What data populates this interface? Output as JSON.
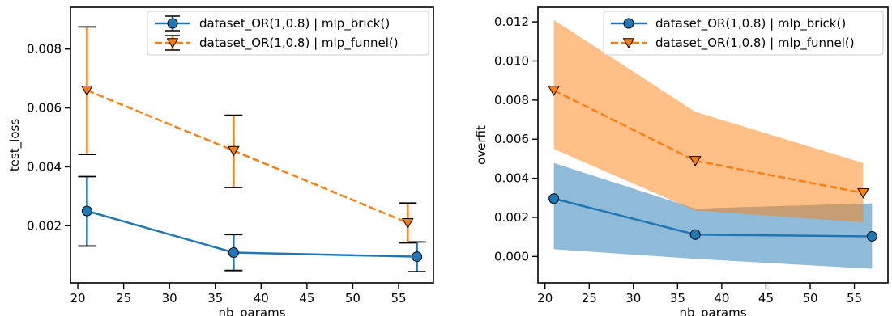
{
  "chart_data": [
    {
      "type": "line",
      "xlabel": "nb_params",
      "ylabel": "test_loss",
      "xlim": [
        19.2,
        58.8
      ],
      "ylim": [
        6e-05,
        0.00942
      ],
      "xticks": [
        20,
        25,
        30,
        35,
        40,
        45,
        50,
        55
      ],
      "yticks": [
        0.002,
        0.004,
        0.006,
        0.008
      ],
      "xtick_labels": [
        "20",
        "25",
        "30",
        "35",
        "40",
        "45",
        "50",
        "55"
      ],
      "ytick_labels": [
        "0.002",
        "0.004",
        "0.006",
        "0.008"
      ],
      "legend_position": "top-right",
      "series": [
        {
          "name": "dataset_OR(1,0.8) | mlp_brick()",
          "color": "#1f77b4",
          "marker": "circle",
          "linestyle": "solid",
          "x": [
            21,
            37,
            57
          ],
          "y": [
            0.0025,
            0.00109,
            0.00095
          ],
          "err_low": [
            0.00131,
            0.00048,
            0.00044
          ],
          "err_high": [
            0.00367,
            0.0017,
            0.00145
          ]
        },
        {
          "name": "dataset_OR(1,0.8) | mlp_funnel()",
          "color": "#ff7f0e",
          "marker": "triangle-down",
          "linestyle": "dashed",
          "x": [
            21,
            37,
            56
          ],
          "y": [
            0.0066,
            0.00455,
            0.0021
          ],
          "err_low": [
            0.00442,
            0.0033,
            0.00142
          ],
          "err_high": [
            0.00875,
            0.00575,
            0.00277
          ]
        }
      ]
    },
    {
      "type": "area",
      "xlabel": "nb_params",
      "ylabel": "overfit",
      "xlim": [
        19.2,
        58.8
      ],
      "ylim": [
        -0.00135,
        0.01275
      ],
      "xticks": [
        20,
        25,
        30,
        35,
        40,
        45,
        50,
        55
      ],
      "yticks": [
        0.0,
        0.002,
        0.004,
        0.006,
        0.008,
        0.01,
        0.012
      ],
      "xtick_labels": [
        "20",
        "25",
        "30",
        "35",
        "40",
        "45",
        "50",
        "55"
      ],
      "ytick_labels": [
        "0.000",
        "0.002",
        "0.004",
        "0.006",
        "0.008",
        "0.010",
        "0.012"
      ],
      "legend_position": "top-right",
      "series": [
        {
          "name": "dataset_OR(1,0.8) | mlp_brick()",
          "color": "#1f77b4",
          "marker": "circle",
          "linestyle": "solid",
          "x": [
            21,
            37,
            57
          ],
          "y": [
            0.00296,
            0.00112,
            0.00103
          ],
          "band_low": [
            0.00037,
            -0.00012,
            -0.00063
          ],
          "band_high": [
            0.00478,
            0.00245,
            0.00272
          ]
        },
        {
          "name": "dataset_OR(1,0.8) | mlp_funnel()",
          "color": "#ff7f0e",
          "marker": "triangle-down",
          "linestyle": "dashed",
          "x": [
            21,
            37,
            56
          ],
          "y": [
            0.0085,
            0.0049,
            0.00325
          ],
          "band_low": [
            0.0055,
            0.00235,
            0.00175
          ],
          "band_high": [
            0.0121,
            0.0074,
            0.00478
          ]
        }
      ]
    }
  ]
}
